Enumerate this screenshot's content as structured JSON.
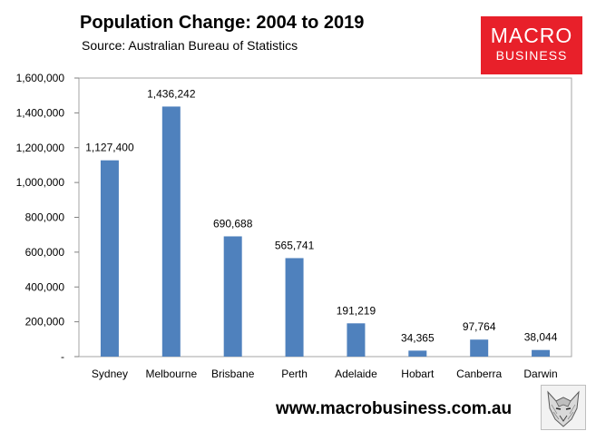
{
  "header": {
    "title": "Population Change: 2004 to 2019",
    "subtitle": "Source: Australian Bureau of Statistics"
  },
  "logo": {
    "line1": "MACRO",
    "line2": "BUSINESS",
    "color": "#e8202a"
  },
  "footer": {
    "website": "www.macrobusiness.com.au",
    "emblem_icon": "wolf-emblem-icon"
  },
  "chart_data": {
    "type": "bar",
    "title": "Population Change: 2004 to 2019",
    "categories": [
      "Sydney",
      "Melbourne",
      "Brisbane",
      "Perth",
      "Adelaide",
      "Hobart",
      "Canberra",
      "Darwin"
    ],
    "values": [
      1127400,
      1436242,
      690688,
      565741,
      191219,
      34365,
      97764,
      38044
    ],
    "data_labels": [
      "1,127,400",
      "1,436,242",
      "690,688",
      "565,741",
      "191,219",
      "34,365",
      "97,764",
      "38,044"
    ],
    "ylim": [
      0,
      1600000
    ],
    "yticks": [
      0,
      200000,
      400000,
      600000,
      800000,
      1000000,
      1200000,
      1400000,
      1600000
    ],
    "ytick_labels": [
      "-",
      "200,000",
      "400,000",
      "600,000",
      "800,000",
      "1,000,000",
      "1,200,000",
      "1,400,000",
      "1,600,000"
    ],
    "bar_color": "#4f81bd",
    "plot_background": "#ffffff",
    "plot_border_color": "#a6a6a6",
    "grid": false,
    "legend": false
  }
}
